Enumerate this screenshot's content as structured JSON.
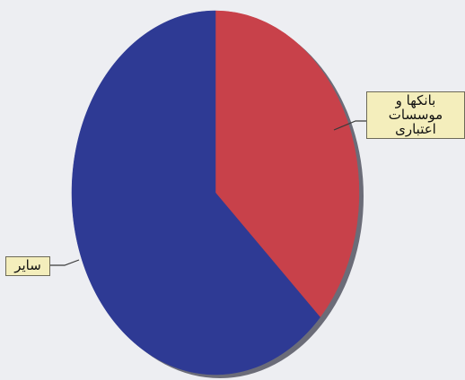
{
  "chart_data": {
    "type": "pie",
    "title": "",
    "slices": [
      {
        "label": "بانکها و موسسات اعتباری",
        "value": 37,
        "color": "#c8414a"
      },
      {
        "label": "سایر",
        "value": 63,
        "color": "#2e3a94"
      }
    ],
    "start_angle_deg": 0,
    "direction": "clockwise",
    "legend": "none"
  }
}
